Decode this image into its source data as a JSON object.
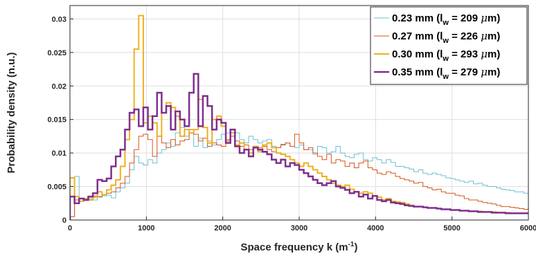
{
  "chart_data": {
    "type": "line",
    "subtype": "stairs-histogram",
    "title": "",
    "xlabel": "Space frequency k (m",
    "xlabel_sup": "-1",
    "xlabel_end": ")",
    "ylabel": "Probability density (n.u.)",
    "xlim": [
      0,
      6000
    ],
    "ylim": [
      0,
      0.032
    ],
    "grid": true,
    "box": true,
    "legend_position": "top-right",
    "x_ticks": [
      0,
      1000,
      2000,
      3000,
      4000,
      5000,
      6000
    ],
    "y_ticks": [
      0,
      0.005,
      0.01,
      0.015,
      0.02,
      0.025,
      0.03
    ],
    "x_tick_labels": [
      "0",
      "1000",
      "2000",
      "3000",
      "4000",
      "5000",
      "6000"
    ],
    "y_tick_labels": [
      "0",
      "0.005",
      "0.01",
      "0.015",
      "0.02",
      "0.025",
      "0.03"
    ],
    "bin_width": 60,
    "x_start": 0,
    "series": [
      {
        "name": "0.23 mm (l_w = 209 μm)",
        "legend_pre": "0.23 mm (l",
        "legend_sub": "w",
        "legend_mid": " = 209 ",
        "legend_mu": "μ",
        "legend_end": "m)",
        "color": "#6bbfd6",
        "line_width": 1,
        "values": [
          0.0005,
          0.0065,
          0.0032,
          0.003,
          0.0032,
          0.003,
          0.0034,
          0.0036,
          0.0037,
          0.0033,
          0.0042,
          0.0048,
          0.0055,
          0.0075,
          0.0095,
          0.0085,
          0.0082,
          0.009,
          0.0085,
          0.01,
          0.0105,
          0.0115,
          0.011,
          0.013,
          0.0138,
          0.0125,
          0.013,
          0.011,
          0.0122,
          0.0108,
          0.0118,
          0.0112,
          0.012,
          0.0128,
          0.013,
          0.0125,
          0.013,
          0.012,
          0.0115,
          0.0125,
          0.012,
          0.0115,
          0.0118,
          0.012,
          0.011,
          0.0108,
          0.0113,
          0.0115,
          0.011,
          0.0108,
          0.0112,
          0.0105,
          0.0105,
          0.0098,
          0.011,
          0.0108,
          0.01,
          0.0102,
          0.011,
          0.01,
          0.0095,
          0.0093,
          0.0098,
          0.01,
          0.009,
          0.0088,
          0.0093,
          0.009,
          0.0085,
          0.009,
          0.0086,
          0.008,
          0.008,
          0.0078,
          0.0076,
          0.0072,
          0.0075,
          0.007,
          0.0068,
          0.007,
          0.0068,
          0.0066,
          0.0063,
          0.0062,
          0.006,
          0.0058,
          0.0056,
          0.0058,
          0.0054,
          0.0055,
          0.0052,
          0.005,
          0.005,
          0.0048,
          0.0046,
          0.0045,
          0.0044,
          0.0042,
          0.0042,
          0.004
        ]
      },
      {
        "name": "0.27 mm (l_w = 226 μm)",
        "legend_pre": "0.27 mm (l",
        "legend_sub": "w",
        "legend_mid": " = 226 ",
        "legend_mu": "μ",
        "legend_end": "m)",
        "color": "#d95319",
        "line_width": 1,
        "values": [
          0.0005,
          0.003,
          0.0032,
          0.003,
          0.0034,
          0.0036,
          0.0035,
          0.0038,
          0.004,
          0.0042,
          0.0048,
          0.0055,
          0.0065,
          0.0085,
          0.0105,
          0.0125,
          0.0128,
          0.012,
          0.0095,
          0.0125,
          0.0115,
          0.0108,
          0.012,
          0.0112,
          0.0118,
          0.012,
          0.0135,
          0.0128,
          0.0118,
          0.0122,
          0.011,
          0.0115,
          0.0112,
          0.011,
          0.012,
          0.0125,
          0.0118,
          0.011,
          0.0112,
          0.0105,
          0.011,
          0.0108,
          0.011,
          0.0105,
          0.0102,
          0.0108,
          0.0112,
          0.0115,
          0.011,
          0.0128,
          0.0115,
          0.0105,
          0.0108,
          0.01,
          0.0095,
          0.009,
          0.0098,
          0.0085,
          0.009,
          0.0088,
          0.008,
          0.0085,
          0.0078,
          0.0085,
          0.0088,
          0.0078,
          0.0075,
          0.007,
          0.0068,
          0.0072,
          0.007,
          0.0065,
          0.0062,
          0.006,
          0.0058,
          0.0055,
          0.0056,
          0.005,
          0.0048,
          0.0045,
          0.0046,
          0.0042,
          0.004,
          0.004,
          0.0037,
          0.0036,
          0.0032,
          0.003,
          0.003,
          0.0028,
          0.0026,
          0.0025,
          0.0024,
          0.0022,
          0.002,
          0.002,
          0.0019,
          0.0018,
          0.0017,
          0.0016
        ]
      },
      {
        "name": "0.30 mm (l_w = 293 μm)",
        "legend_pre": "0.30 mm (l",
        "legend_sub": "w",
        "legend_mid": " = 293 ",
        "legend_mu": "μ",
        "legend_end": "m)",
        "color": "#edb120",
        "line_width": 2,
        "values": [
          0.0063,
          0.0035,
          0.0028,
          0.0032,
          0.003,
          0.0034,
          0.0042,
          0.0038,
          0.0045,
          0.0052,
          0.006,
          0.008,
          0.012,
          0.015,
          0.0255,
          0.0305,
          0.0145,
          0.0155,
          0.0145,
          0.0125,
          0.016,
          0.0175,
          0.0168,
          0.0155,
          0.0125,
          0.0135,
          0.013,
          0.0135,
          0.018,
          0.0138,
          0.0115,
          0.015,
          0.0155,
          0.014,
          0.0118,
          0.013,
          0.0112,
          0.0115,
          0.0105,
          0.01,
          0.011,
          0.0102,
          0.0112,
          0.0115,
          0.0108,
          0.01,
          0.0098,
          0.0095,
          0.009,
          0.0085,
          0.008,
          0.0085,
          0.008,
          0.0075,
          0.007,
          0.0065,
          0.006,
          0.0055,
          0.0052,
          0.005,
          0.0052,
          0.0046,
          0.0042,
          0.004,
          0.0042,
          0.004,
          0.0036,
          0.0034,
          0.003,
          0.0032,
          0.0028,
          0.0027,
          0.0026,
          0.0024,
          0.0022,
          0.002,
          0.002,
          0.0019,
          0.0018,
          0.0018,
          0.0017,
          0.0016,
          0.0016,
          0.0015,
          0.0015,
          0.0014,
          0.0014,
          0.0013,
          0.0013,
          0.0013,
          0.0012,
          0.0012,
          0.0012,
          0.0011,
          0.0011,
          0.0011,
          0.001,
          0.001,
          0.001,
          0.001
        ]
      },
      {
        "name": "0.35 mm (l_w = 279 μm)",
        "legend_pre": "0.35 mm (l",
        "legend_sub": "w",
        "legend_mid": " = 279 ",
        "legend_mu": "μ",
        "legend_end": "m)",
        "color": "#7e2f8e",
        "line_width": 2.5,
        "values": [
          0.0035,
          0.0025,
          0.0032,
          0.003,
          0.0035,
          0.004,
          0.006,
          0.0058,
          0.0062,
          0.008,
          0.0095,
          0.0105,
          0.0135,
          0.016,
          0.0165,
          0.014,
          0.0168,
          0.0135,
          0.0155,
          0.019,
          0.016,
          0.017,
          0.0135,
          0.0162,
          0.015,
          0.014,
          0.019,
          0.0218,
          0.014,
          0.0185,
          0.017,
          0.0135,
          0.015,
          0.0145,
          0.0115,
          0.0135,
          0.011,
          0.01,
          0.0105,
          0.0095,
          0.0108,
          0.0105,
          0.0102,
          0.0098,
          0.009,
          0.0085,
          0.009,
          0.008,
          0.0085,
          0.0082,
          0.0075,
          0.007,
          0.0065,
          0.006,
          0.0055,
          0.0052,
          0.0055,
          0.0058,
          0.005,
          0.0048,
          0.0045,
          0.004,
          0.0042,
          0.0035,
          0.0038,
          0.0032,
          0.0036,
          0.003,
          0.0028,
          0.003,
          0.0026,
          0.0025,
          0.0024,
          0.0022,
          0.0021,
          0.002,
          0.002,
          0.0019,
          0.0018,
          0.0018,
          0.0017,
          0.0016,
          0.0016,
          0.0015,
          0.0015,
          0.0014,
          0.0014,
          0.0013,
          0.0013,
          0.0012,
          0.0012,
          0.0012,
          0.0011,
          0.0011,
          0.0011,
          0.001,
          0.001,
          0.001,
          0.001,
          0.001
        ]
      }
    ]
  }
}
